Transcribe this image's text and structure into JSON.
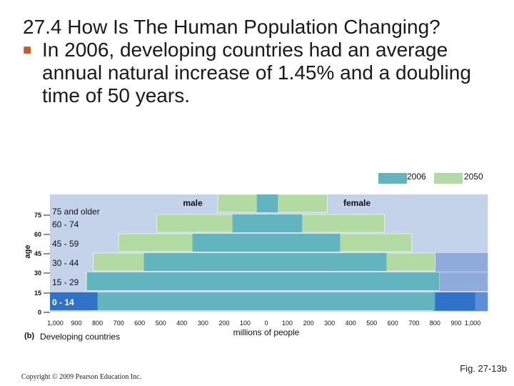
{
  "slide": {
    "title": "27.4 How Is The Human Population Changing?",
    "bullet": "In 2006, developing countries had an average annual natural increase of 1.45% and a doubling time of 50 years.",
    "figure_ref": "Fig. 27-13b",
    "copyright": "Copyright © 2009 Pearson Education Inc."
  },
  "colors": {
    "bg_2050": "#c4d3ea",
    "band_2050": "#8fabdc",
    "band_2050_dark": "#5d8fd6",
    "band_2006_darkest": "#2f72c8",
    "color_2006": "#62b5bf",
    "color_2050": "#b2dba3",
    "bullet": "#cc5a1e"
  },
  "chart_data": {
    "type": "bar",
    "subtype": "population-pyramid",
    "panel_label": "(b)",
    "panel_title": "Developing countries",
    "xlabel": "millions of people",
    "ylabel": "age",
    "side_labels": [
      "male",
      "female"
    ],
    "legend": [
      "2006",
      "2050"
    ],
    "legend_position": "top-right",
    "x_ticks_left": [
      "1,000",
      "900",
      "800",
      "700",
      "600",
      "500",
      "400",
      "300",
      "200",
      "100",
      "0"
    ],
    "x_ticks_right": [
      "100",
      "200",
      "300",
      "400",
      "500",
      "600",
      "700",
      "800",
      "900",
      "1,000"
    ],
    "y_ticks": [
      "75",
      "60",
      "45",
      "30",
      "15",
      "0"
    ],
    "xlim": [
      -1050,
      1050
    ],
    "categories": [
      "0 - 14",
      "15 - 29",
      "30 - 44",
      "45 - 59",
      "60 - 74",
      "75 and older"
    ],
    "series": [
      {
        "name": "2006",
        "male": [
          1045,
          850,
          580,
          350,
          160,
          45
        ],
        "female": [
          990,
          820,
          570,
          350,
          170,
          55
        ]
      },
      {
        "name": "2050",
        "male": [
          830,
          855,
          820,
          700,
          520,
          230
        ],
        "female": [
          790,
          820,
          800,
          690,
          560,
          290
        ]
      }
    ]
  }
}
